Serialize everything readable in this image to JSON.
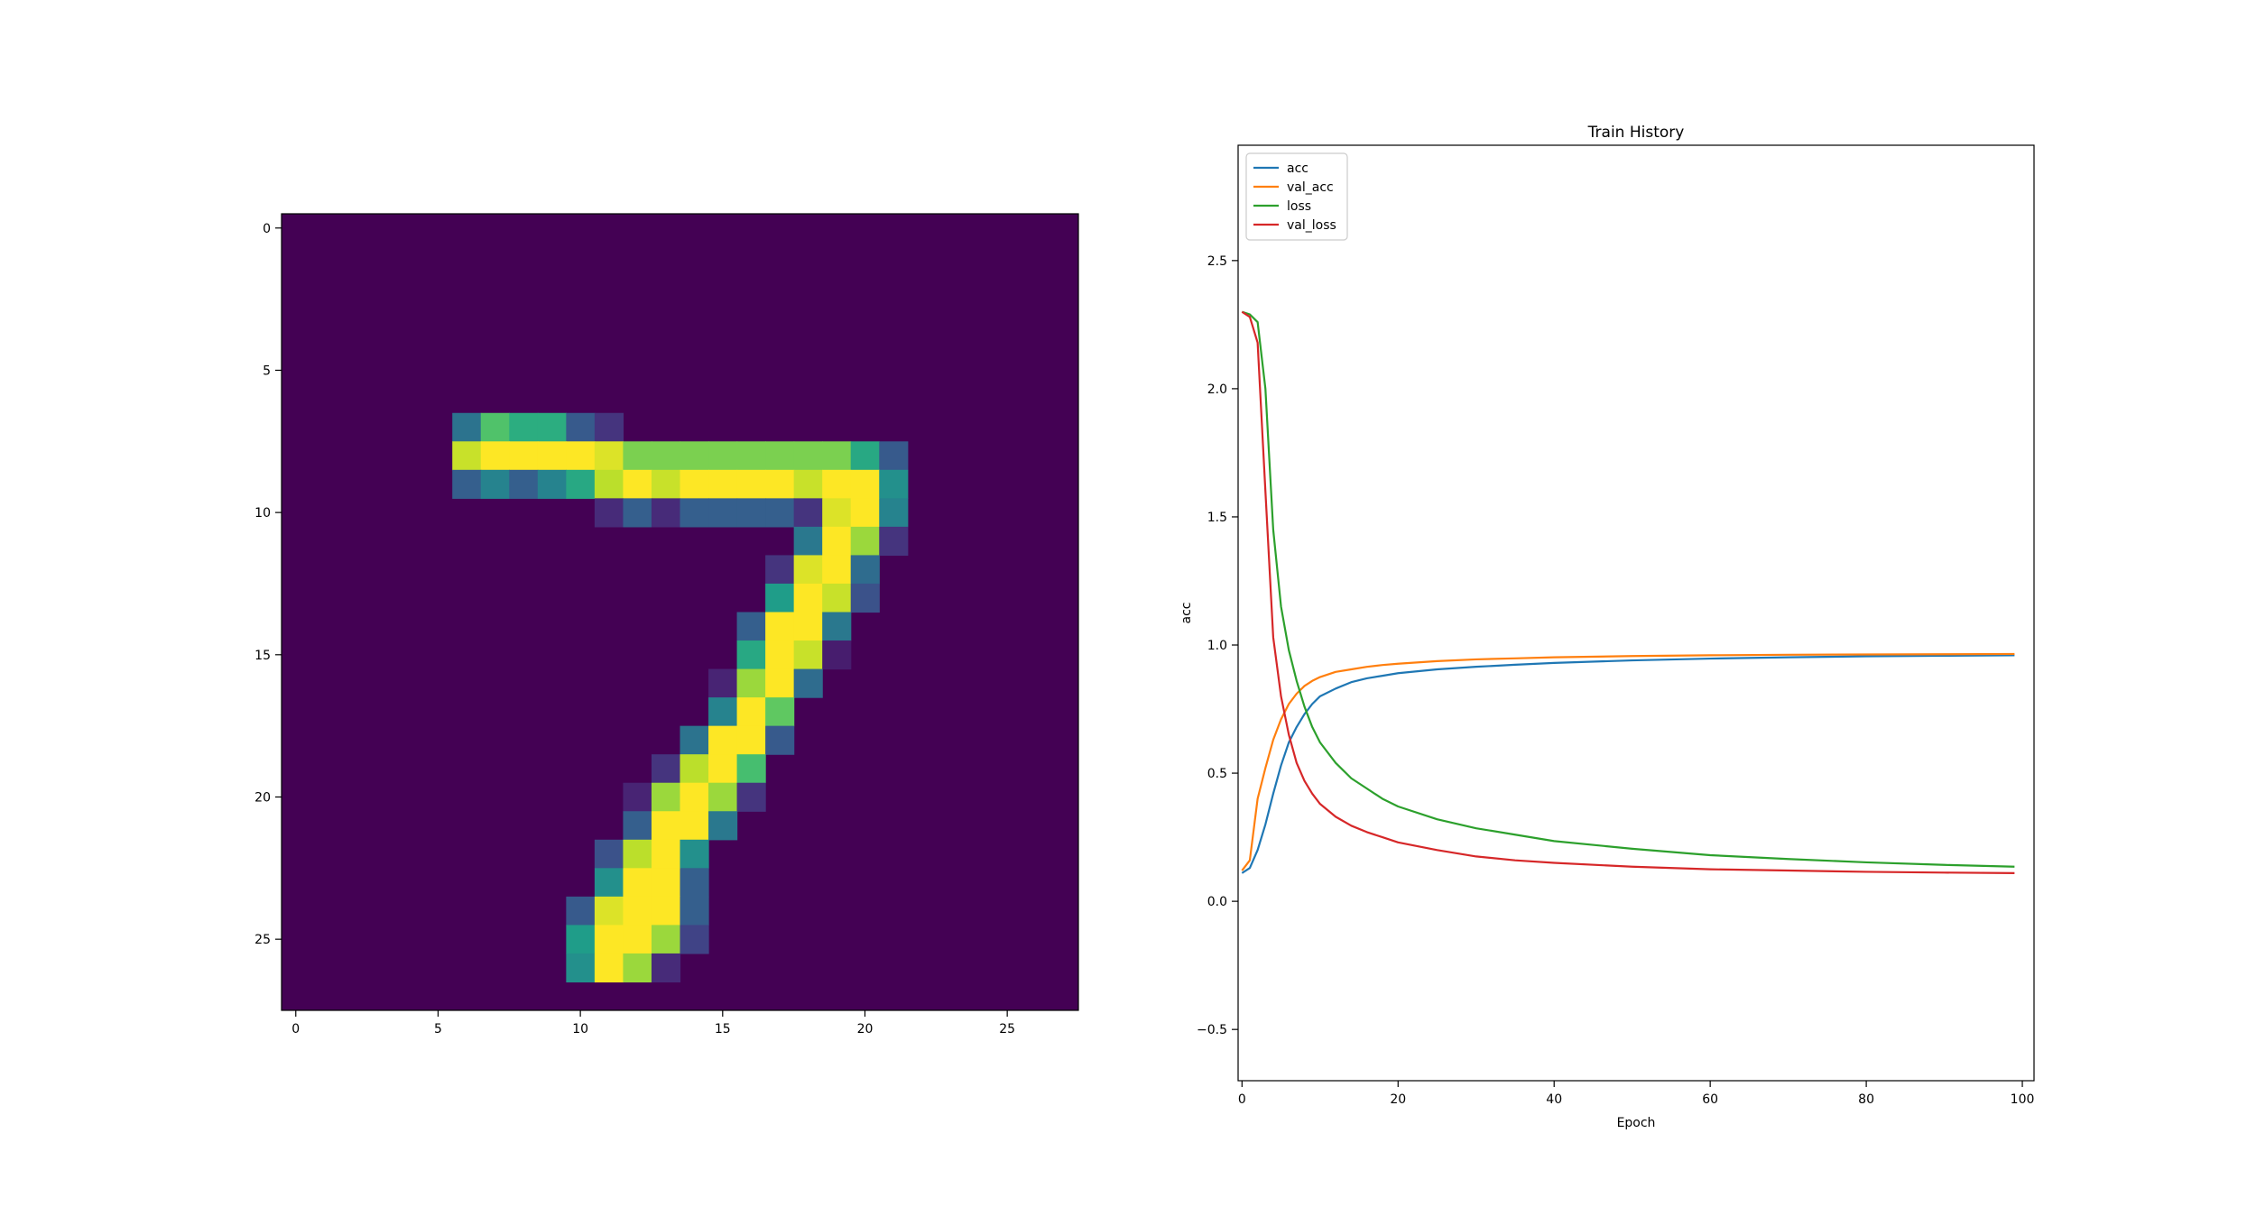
{
  "chart_data": [
    {
      "type": "heatmap",
      "colormap": "viridis",
      "xlim": [
        -0.5,
        27.5
      ],
      "ylim": [
        27.5,
        -0.5
      ],
      "x_ticks": [
        "0",
        "5",
        "10",
        "15",
        "20",
        "25"
      ],
      "y_ticks": [
        "0",
        "5",
        "10",
        "15",
        "20",
        "25"
      ],
      "rows": [
        {
          "row": 7,
          "cells": [
            [
              6,
              0.38
            ],
            [
              7,
              0.72
            ],
            [
              8,
              0.62
            ],
            [
              9,
              0.62
            ],
            [
              10,
              0.28
            ],
            [
              11,
              0.15
            ]
          ]
        },
        {
          "row": 8,
          "cells": [
            [
              6,
              0.92
            ],
            [
              7,
              1.0
            ],
            [
              8,
              1.0
            ],
            [
              9,
              1.0
            ],
            [
              10,
              1.0
            ],
            [
              11,
              0.95
            ],
            [
              12,
              0.8
            ],
            [
              13,
              0.8
            ],
            [
              14,
              0.8
            ],
            [
              15,
              0.8
            ],
            [
              16,
              0.8
            ],
            [
              17,
              0.8
            ],
            [
              18,
              0.8
            ],
            [
              19,
              0.8
            ],
            [
              20,
              0.6
            ],
            [
              21,
              0.28
            ]
          ]
        },
        {
          "row": 9,
          "cells": [
            [
              6,
              0.3
            ],
            [
              7,
              0.45
            ],
            [
              8,
              0.3
            ],
            [
              9,
              0.45
            ],
            [
              10,
              0.6
            ],
            [
              11,
              0.9
            ],
            [
              12,
              1.0
            ],
            [
              13,
              0.92
            ],
            [
              14,
              1.0
            ],
            [
              15,
              1.0
            ],
            [
              16,
              1.0
            ],
            [
              17,
              1.0
            ],
            [
              18,
              0.92
            ],
            [
              19,
              1.0
            ],
            [
              20,
              1.0
            ],
            [
              21,
              0.5
            ]
          ]
        },
        {
          "row": 10,
          "cells": [
            [
              11,
              0.12
            ],
            [
              12,
              0.3
            ],
            [
              13,
              0.12
            ],
            [
              14,
              0.3
            ],
            [
              15,
              0.3
            ],
            [
              16,
              0.3
            ],
            [
              17,
              0.3
            ],
            [
              18,
              0.15
            ],
            [
              19,
              0.95
            ],
            [
              20,
              1.0
            ],
            [
              21,
              0.45
            ]
          ]
        },
        {
          "row": 11,
          "cells": [
            [
              18,
              0.4
            ],
            [
              19,
              1.0
            ],
            [
              20,
              0.85
            ],
            [
              21,
              0.15
            ]
          ]
        },
        {
          "row": 12,
          "cells": [
            [
              17,
              0.15
            ],
            [
              18,
              0.95
            ],
            [
              19,
              1.0
            ],
            [
              20,
              0.35
            ]
          ]
        },
        {
          "row": 13,
          "cells": [
            [
              17,
              0.55
            ],
            [
              18,
              1.0
            ],
            [
              19,
              0.92
            ],
            [
              20,
              0.25
            ]
          ]
        },
        {
          "row": 14,
          "cells": [
            [
              16,
              0.3
            ],
            [
              17,
              1.0
            ],
            [
              18,
              1.0
            ],
            [
              19,
              0.4
            ]
          ]
        },
        {
          "row": 15,
          "cells": [
            [
              16,
              0.6
            ],
            [
              17,
              1.0
            ],
            [
              18,
              0.92
            ],
            [
              19,
              0.08
            ]
          ]
        },
        {
          "row": 16,
          "cells": [
            [
              15,
              0.1
            ],
            [
              16,
              0.85
            ],
            [
              17,
              1.0
            ],
            [
              18,
              0.35
            ]
          ]
        },
        {
          "row": 17,
          "cells": [
            [
              15,
              0.45
            ],
            [
              16,
              1.0
            ],
            [
              17,
              0.75
            ]
          ]
        },
        {
          "row": 18,
          "cells": [
            [
              14,
              0.38
            ],
            [
              15,
              1.0
            ],
            [
              16,
              1.0
            ],
            [
              17,
              0.28
            ]
          ]
        },
        {
          "row": 19,
          "cells": [
            [
              13,
              0.15
            ],
            [
              14,
              0.9
            ],
            [
              15,
              1.0
            ],
            [
              16,
              0.7
            ]
          ]
        },
        {
          "row": 20,
          "cells": [
            [
              12,
              0.1
            ],
            [
              13,
              0.85
            ],
            [
              14,
              1.0
            ],
            [
              15,
              0.85
            ],
            [
              16,
              0.15
            ]
          ]
        },
        {
          "row": 21,
          "cells": [
            [
              12,
              0.3
            ],
            [
              13,
              1.0
            ],
            [
              14,
              1.0
            ],
            [
              15,
              0.4
            ]
          ]
        },
        {
          "row": 22,
          "cells": [
            [
              11,
              0.25
            ],
            [
              12,
              0.9
            ],
            [
              13,
              1.0
            ],
            [
              14,
              0.5
            ]
          ]
        },
        {
          "row": 23,
          "cells": [
            [
              11,
              0.5
            ],
            [
              12,
              1.0
            ],
            [
              13,
              1.0
            ],
            [
              14,
              0.3
            ]
          ]
        },
        {
          "row": 24,
          "cells": [
            [
              10,
              0.28
            ],
            [
              11,
              0.95
            ],
            [
              12,
              1.0
            ],
            [
              13,
              1.0
            ],
            [
              14,
              0.3
            ]
          ]
        },
        {
          "row": 25,
          "cells": [
            [
              10,
              0.55
            ],
            [
              11,
              1.0
            ],
            [
              12,
              1.0
            ],
            [
              13,
              0.85
            ],
            [
              14,
              0.2
            ]
          ]
        },
        {
          "row": 26,
          "cells": [
            [
              10,
              0.5
            ],
            [
              11,
              1.0
            ],
            [
              12,
              0.85
            ],
            [
              13,
              0.12
            ]
          ]
        }
      ]
    },
    {
      "type": "line",
      "title": "Train History",
      "xlabel": "Epoch",
      "ylabel": "acc",
      "xlim": [
        -0.5,
        101.5
      ],
      "ylim": [
        -0.7,
        2.95
      ],
      "x_ticks": [
        0,
        20,
        40,
        60,
        80,
        100
      ],
      "y_ticks": [
        -0.5,
        0.0,
        0.5,
        1.0,
        1.5,
        2.0,
        2.5
      ],
      "x_tick_labels": [
        "0",
        "20",
        "40",
        "60",
        "80",
        "100"
      ],
      "y_tick_labels": [
        "−0.5",
        "0.0",
        "0.5",
        "1.0",
        "1.5",
        "2.0",
        "2.5"
      ],
      "grid": false,
      "legend": "upper-left",
      "series": [
        {
          "name": "acc",
          "color": "#1f77b4",
          "points": [
            [
              0,
              0.11
            ],
            [
              1,
              0.13
            ],
            [
              2,
              0.2
            ],
            [
              3,
              0.3
            ],
            [
              4,
              0.42
            ],
            [
              5,
              0.53
            ],
            [
              6,
              0.62
            ],
            [
              7,
              0.68
            ],
            [
              8,
              0.73
            ],
            [
              9,
              0.77
            ],
            [
              10,
              0.8
            ],
            [
              12,
              0.83
            ],
            [
              14,
              0.855
            ],
            [
              16,
              0.87
            ],
            [
              18,
              0.88
            ],
            [
              20,
              0.89
            ],
            [
              25,
              0.905
            ],
            [
              30,
              0.915
            ],
            [
              35,
              0.923
            ],
            [
              40,
              0.93
            ],
            [
              50,
              0.94
            ],
            [
              60,
              0.947
            ],
            [
              70,
              0.952
            ],
            [
              80,
              0.956
            ],
            [
              90,
              0.958
            ],
            [
              99,
              0.96
            ]
          ]
        },
        {
          "name": "val_acc",
          "color": "#ff7f0e",
          "points": [
            [
              0,
              0.12
            ],
            [
              1,
              0.16
            ],
            [
              2,
              0.4
            ],
            [
              3,
              0.52
            ],
            [
              4,
              0.63
            ],
            [
              5,
              0.71
            ],
            [
              6,
              0.77
            ],
            [
              7,
              0.81
            ],
            [
              8,
              0.84
            ],
            [
              9,
              0.86
            ],
            [
              10,
              0.875
            ],
            [
              12,
              0.895
            ],
            [
              14,
              0.905
            ],
            [
              16,
              0.915
            ],
            [
              18,
              0.922
            ],
            [
              20,
              0.927
            ],
            [
              25,
              0.937
            ],
            [
              30,
              0.944
            ],
            [
              35,
              0.948
            ],
            [
              40,
              0.952
            ],
            [
              50,
              0.957
            ],
            [
              60,
              0.96
            ],
            [
              70,
              0.962
            ],
            [
              80,
              0.963
            ],
            [
              90,
              0.964
            ],
            [
              99,
              0.965
            ]
          ]
        },
        {
          "name": "loss",
          "color": "#2ca02c",
          "points": [
            [
              0,
              2.3
            ],
            [
              1,
              2.29
            ],
            [
              2,
              2.26
            ],
            [
              3,
              2.0
            ],
            [
              4,
              1.45
            ],
            [
              5,
              1.15
            ],
            [
              6,
              0.98
            ],
            [
              7,
              0.86
            ],
            [
              8,
              0.76
            ],
            [
              9,
              0.68
            ],
            [
              10,
              0.62
            ],
            [
              12,
              0.54
            ],
            [
              14,
              0.48
            ],
            [
              16,
              0.44
            ],
            [
              18,
              0.4
            ],
            [
              20,
              0.37
            ],
            [
              25,
              0.32
            ],
            [
              30,
              0.285
            ],
            [
              35,
              0.26
            ],
            [
              40,
              0.235
            ],
            [
              50,
              0.205
            ],
            [
              60,
              0.18
            ],
            [
              70,
              0.165
            ],
            [
              80,
              0.152
            ],
            [
              90,
              0.142
            ],
            [
              99,
              0.135
            ]
          ]
        },
        {
          "name": "val_loss",
          "color": "#d62728",
          "points": [
            [
              0,
              2.3
            ],
            [
              1,
              2.28
            ],
            [
              2,
              2.18
            ],
            [
              3,
              1.6
            ],
            [
              4,
              1.03
            ],
            [
              5,
              0.8
            ],
            [
              6,
              0.65
            ],
            [
              7,
              0.54
            ],
            [
              8,
              0.47
            ],
            [
              9,
              0.42
            ],
            [
              10,
              0.38
            ],
            [
              12,
              0.33
            ],
            [
              14,
              0.295
            ],
            [
              16,
              0.27
            ],
            [
              18,
              0.25
            ],
            [
              20,
              0.23
            ],
            [
              25,
              0.2
            ],
            [
              30,
              0.175
            ],
            [
              35,
              0.16
            ],
            [
              40,
              0.15
            ],
            [
              50,
              0.135
            ],
            [
              60,
              0.125
            ],
            [
              70,
              0.12
            ],
            [
              80,
              0.115
            ],
            [
              90,
              0.112
            ],
            [
              99,
              0.11
            ]
          ]
        }
      ]
    }
  ]
}
